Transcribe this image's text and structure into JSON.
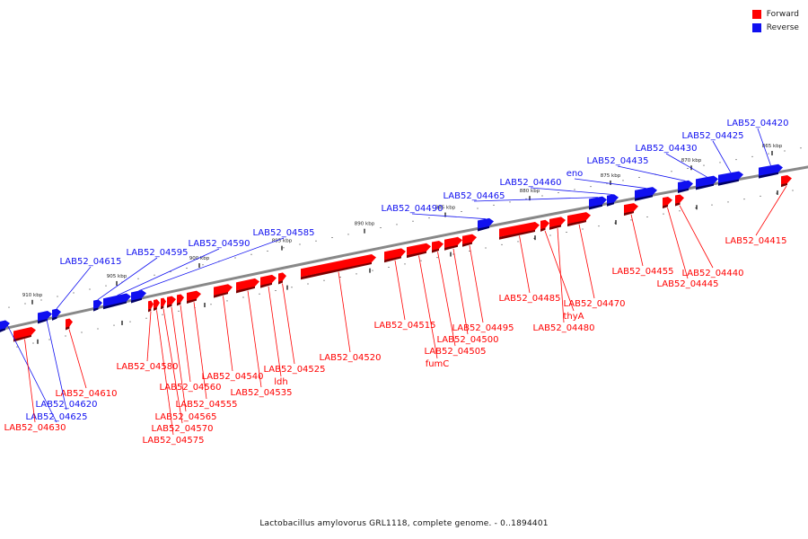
{
  "legend": {
    "forward_label": "Forward",
    "reverse_label": "Reverse",
    "forward_color": "#ff0000",
    "reverse_color": "#1010f0"
  },
  "caption": "Lactobacillus amylovorus GRL1118, complete genome. - 0..1894401",
  "ticks": [
    {
      "label": "865 kbp"
    },
    {
      "label": "870 kbp"
    },
    {
      "label": "875 kbp"
    },
    {
      "label": "880 kbp"
    },
    {
      "label": "885 kbp"
    },
    {
      "label": "890 kbp"
    },
    {
      "label": "895 kbp"
    },
    {
      "label": "900 kbp"
    },
    {
      "label": "905 kbp"
    },
    {
      "label": "910 kbp"
    }
  ],
  "genes": [
    {
      "name": "LAB52_04415",
      "strand": "forward"
    },
    {
      "name": "LAB52_04420",
      "strand": "reverse"
    },
    {
      "name": "LAB52_04425",
      "strand": "reverse"
    },
    {
      "name": "LAB52_04430",
      "strand": "reverse"
    },
    {
      "name": "LAB52_04435",
      "strand": "reverse"
    },
    {
      "name": "LAB52_04440",
      "strand": "forward"
    },
    {
      "name": "LAB52_04445",
      "strand": "forward"
    },
    {
      "name": "LAB52_04455",
      "strand": "forward"
    },
    {
      "name": "eno",
      "strand": "reverse"
    },
    {
      "name": "LAB52_04460",
      "strand": "reverse"
    },
    {
      "name": "LAB52_04465",
      "strand": "reverse"
    },
    {
      "name": "LAB52_04470",
      "strand": "forward"
    },
    {
      "name": "LAB52_04480",
      "strand": "forward"
    },
    {
      "name": "thyA",
      "strand": "forward"
    },
    {
      "name": "LAB52_04485",
      "strand": "forward"
    },
    {
      "name": "LAB52_04490",
      "strand": "reverse"
    },
    {
      "name": "LAB52_04495",
      "strand": "forward"
    },
    {
      "name": "LAB52_04500",
      "strand": "forward"
    },
    {
      "name": "LAB52_04505",
      "strand": "forward"
    },
    {
      "name": "fumC",
      "strand": "forward"
    },
    {
      "name": "LAB52_04515",
      "strand": "forward"
    },
    {
      "name": "LAB52_04520",
      "strand": "forward"
    },
    {
      "name": "LAB52_04525",
      "strand": "forward"
    },
    {
      "name": "ldh",
      "strand": "forward"
    },
    {
      "name": "LAB52_04535",
      "strand": "forward"
    },
    {
      "name": "LAB52_04540",
      "strand": "forward"
    },
    {
      "name": "LAB52_04555",
      "strand": "forward"
    },
    {
      "name": "LAB52_04560",
      "strand": "forward"
    },
    {
      "name": "LAB52_04565",
      "strand": "forward"
    },
    {
      "name": "LAB52_04570",
      "strand": "forward"
    },
    {
      "name": "LAB52_04575",
      "strand": "forward"
    },
    {
      "name": "LAB52_04580",
      "strand": "forward"
    },
    {
      "name": "LAB52_04585",
      "strand": "reverse"
    },
    {
      "name": "LAB52_04590",
      "strand": "reverse"
    },
    {
      "name": "LAB52_04595",
      "strand": "reverse"
    },
    {
      "name": "LAB52_04610",
      "strand": "forward"
    },
    {
      "name": "LAB52_04615",
      "strand": "reverse"
    },
    {
      "name": "LAB52_04620",
      "strand": "reverse"
    },
    {
      "name": "LAB52_04625",
      "strand": "reverse"
    },
    {
      "name": "LAB52_04630",
      "strand": "forward"
    }
  ]
}
